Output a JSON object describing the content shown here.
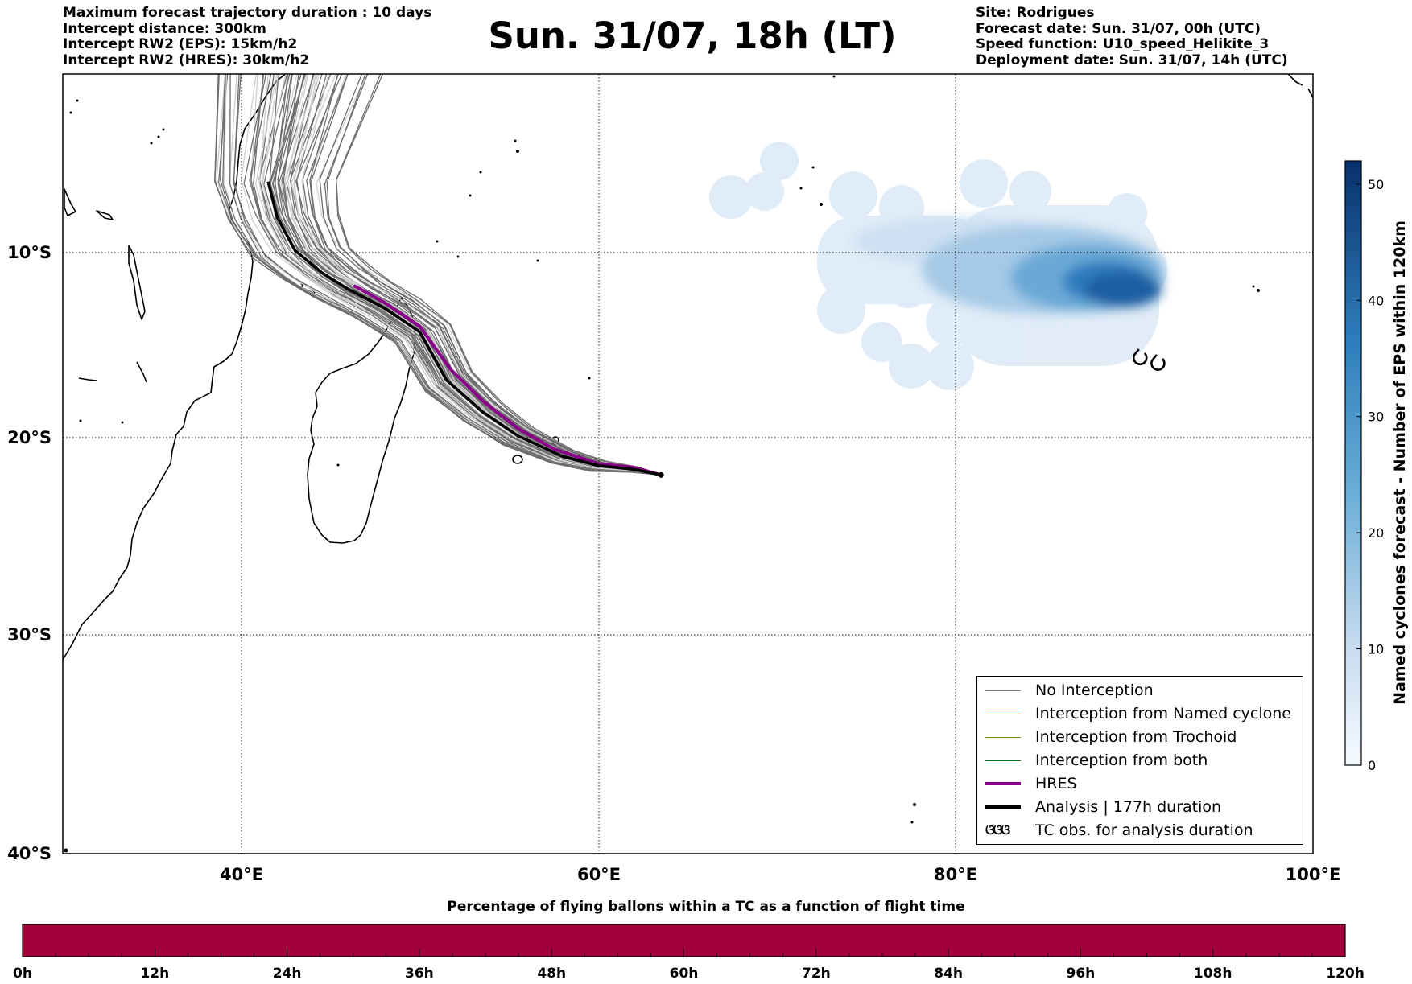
{
  "header": {
    "title": "Sun. 31/07, 18h (LT)",
    "left_lines": [
      "Maximum forecast trajectory duration : 10 days",
      "Intercept distance: 300km",
      "Intercept RW2 (EPS):  15km/h2",
      "Intercept RW2 (HRES): 30km/h2"
    ],
    "right_lines": [
      "Site: Rodrigues",
      "Forecast date: Sun. 31/07, 00h (UTC)",
      "Speed function: U10_speed_Helikite_3",
      "Deployment date: Sun. 31/07, 14h (UTC)"
    ]
  },
  "map": {
    "lon_range": [
      30,
      100
    ],
    "lat_range": [
      -40,
      2
    ],
    "lon_ticks": [
      {
        "value": 40,
        "label": "40°E"
      },
      {
        "value": 60,
        "label": "60°E"
      },
      {
        "value": 80,
        "label": "80°E"
      },
      {
        "value": 100,
        "label": "100°E"
      }
    ],
    "lat_ticks": [
      {
        "value": -10,
        "label": "10°S"
      },
      {
        "value": -20,
        "label": "20°S"
      },
      {
        "value": -30,
        "label": "30°S"
      },
      {
        "value": -40,
        "label": "40°S"
      }
    ],
    "hres_track": [
      [
        46.3,
        -9.4
      ],
      [
        48,
        -10.3
      ],
      [
        50,
        -11.6
      ],
      [
        51.7,
        -13.9
      ],
      [
        53.5,
        -15.6
      ],
      [
        55.5,
        -17.1
      ],
      [
        57.5,
        -18.2
      ],
      [
        60,
        -19
      ],
      [
        62,
        -19.2
      ],
      [
        63.5,
        -19.6
      ]
    ],
    "analysis_track": [
      [
        41.5,
        -3.8
      ],
      [
        42,
        -5.7
      ],
      [
        43,
        -7.5
      ],
      [
        44.5,
        -8.7
      ],
      [
        46,
        -9.6
      ],
      [
        48,
        -10.6
      ],
      [
        50,
        -11.9
      ],
      [
        51.5,
        -14.5
      ],
      [
        53.5,
        -16.2
      ],
      [
        55.5,
        -17.5
      ],
      [
        58,
        -18.6
      ],
      [
        60,
        -19.1
      ],
      [
        62,
        -19.3
      ],
      [
        63.5,
        -19.6
      ]
    ],
    "tc_observations": [
      [
        90.3,
        -13.3
      ],
      [
        91.3,
        -13.6
      ]
    ],
    "colors": {
      "hres": "#8B008B",
      "analysis": "#000000",
      "no_interception": "#808080",
      "named_cyclone": "#ff6c1f",
      "trochoid": "#808000",
      "both": "#008000",
      "ensemble_light": "#cfcfcf",
      "ensemble_dark": "#6e6e6e",
      "density_max": "#08306b",
      "density_min": "#deebf7"
    }
  },
  "legend": {
    "items": [
      {
        "label": "No Interception",
        "kind": "line",
        "color": "#808080",
        "width": 1.5
      },
      {
        "label": "Interception from Named cyclone",
        "kind": "line",
        "color": "#ff6c1f",
        "width": 1.5
      },
      {
        "label": "Interception from Trochoid",
        "kind": "line",
        "color": "#808000",
        "width": 1.5
      },
      {
        "label": "Interception from both",
        "kind": "line",
        "color": "#008000",
        "width": 1.5
      },
      {
        "label": "HRES",
        "kind": "line",
        "color": "#8B008B",
        "width": 4
      },
      {
        "label": "Analysis | 177h duration",
        "kind": "line",
        "color": "#000000",
        "width": 4
      },
      {
        "label": "TC obs. for analysis duration",
        "kind": "symbol",
        "symbol": "ଓଓଓ",
        "color": "#000000"
      }
    ]
  },
  "colorbar": {
    "label": "Named cyclones forecast - Number of EPS within 120km",
    "range": [
      0,
      52
    ],
    "ticks": [
      0,
      10,
      20,
      30,
      40,
      50
    ]
  },
  "timeline": {
    "title": "Percentage of flying ballons within a TC as a function of flight time",
    "fill_color": "#a1003c",
    "fill_fraction": 1.0,
    "range_hours": [
      0,
      120
    ],
    "labels": [
      "0h",
      "12h",
      "24h",
      "36h",
      "48h",
      "60h",
      "72h",
      "84h",
      "96h",
      "108h",
      "120h"
    ]
  }
}
